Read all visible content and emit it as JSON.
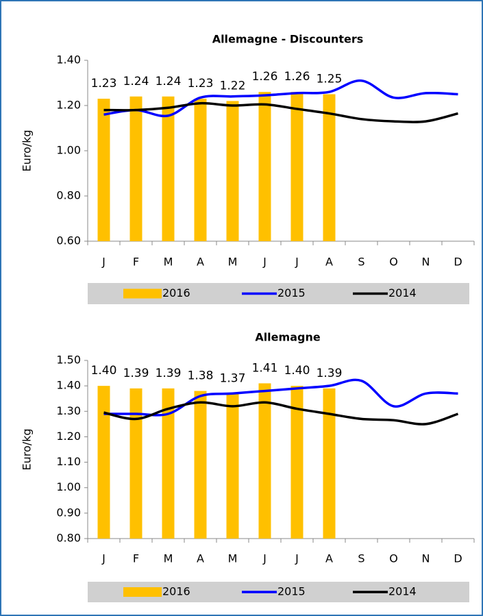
{
  "chart_data": [
    {
      "type": "combo",
      "title": "Allemagne - Discounters",
      "y_label": "Euro/kg",
      "categories": [
        "J",
        "F",
        "M",
        "A",
        "M",
        "J",
        "J",
        "A",
        "S",
        "O",
        "N",
        "D"
      ],
      "ylim": [
        0.6,
        1.4
      ],
      "yticks": [
        {
          "value": 0.6,
          "label": "0.60"
        },
        {
          "value": 0.8,
          "label": "0.80"
        },
        {
          "value": 1.0,
          "label": "1.00"
        },
        {
          "value": 1.2,
          "label": "1.20"
        },
        {
          "value": 1.4,
          "label": "1.40"
        }
      ],
      "series": [
        {
          "name": "2016",
          "type": "bar",
          "color": "#ffc000",
          "values": [
            1.23,
            1.24,
            1.24,
            1.23,
            1.22,
            1.26,
            1.26,
            1.25,
            null,
            null,
            null,
            null
          ]
        },
        {
          "name": "2015",
          "type": "line",
          "color": "#0000ff",
          "values": [
            1.16,
            1.18,
            1.155,
            1.235,
            1.24,
            1.245,
            1.255,
            1.26,
            1.31,
            1.235,
            1.255,
            1.25
          ]
        },
        {
          "name": "2014",
          "type": "line",
          "color": "#000000",
          "values": [
            1.18,
            1.18,
            1.19,
            1.21,
            1.2,
            1.205,
            1.185,
            1.165,
            1.14,
            1.13,
            1.13,
            1.165
          ]
        }
      ]
    },
    {
      "type": "combo",
      "title": "Allemagne",
      "y_label": "Euro/kg",
      "categories": [
        "J",
        "F",
        "M",
        "A",
        "M",
        "J",
        "J",
        "A",
        "S",
        "O",
        "N",
        "D"
      ],
      "ylim": [
        0.8,
        1.5
      ],
      "yticks": [
        {
          "value": 0.8,
          "label": "0.80"
        },
        {
          "value": 0.9,
          "label": "0.90"
        },
        {
          "value": 1.0,
          "label": "1.00"
        },
        {
          "value": 1.1,
          "label": "1.10"
        },
        {
          "value": 1.2,
          "label": "1.20"
        },
        {
          "value": 1.3,
          "label": "1.30"
        },
        {
          "value": 1.4,
          "label": "1.40"
        },
        {
          "value": 1.5,
          "label": "1.50"
        }
      ],
      "series": [
        {
          "name": "2016",
          "type": "bar",
          "color": "#ffc000",
          "values": [
            1.4,
            1.39,
            1.39,
            1.38,
            1.37,
            1.41,
            1.4,
            1.39,
            null,
            null,
            null,
            null
          ],
          "value_labels": [
            "1.40",
            "1.39",
            "1.39",
            "1.38",
            "1.37",
            "1.41",
            "1.40",
            "1.39",
            null,
            null,
            null,
            null
          ]
        },
        {
          "name": "2015",
          "type": "line",
          "color": "#0000ff",
          "values": [
            1.29,
            1.29,
            1.29,
            1.36,
            1.37,
            1.38,
            1.39,
            1.4,
            1.42,
            1.32,
            1.37,
            1.37
          ]
        },
        {
          "name": "2014",
          "type": "line",
          "color": "#000000",
          "values": [
            1.295,
            1.27,
            1.31,
            1.335,
            1.32,
            1.335,
            1.31,
            1.29,
            1.27,
            1.265,
            1.25,
            1.29
          ]
        }
      ]
    }
  ]
}
